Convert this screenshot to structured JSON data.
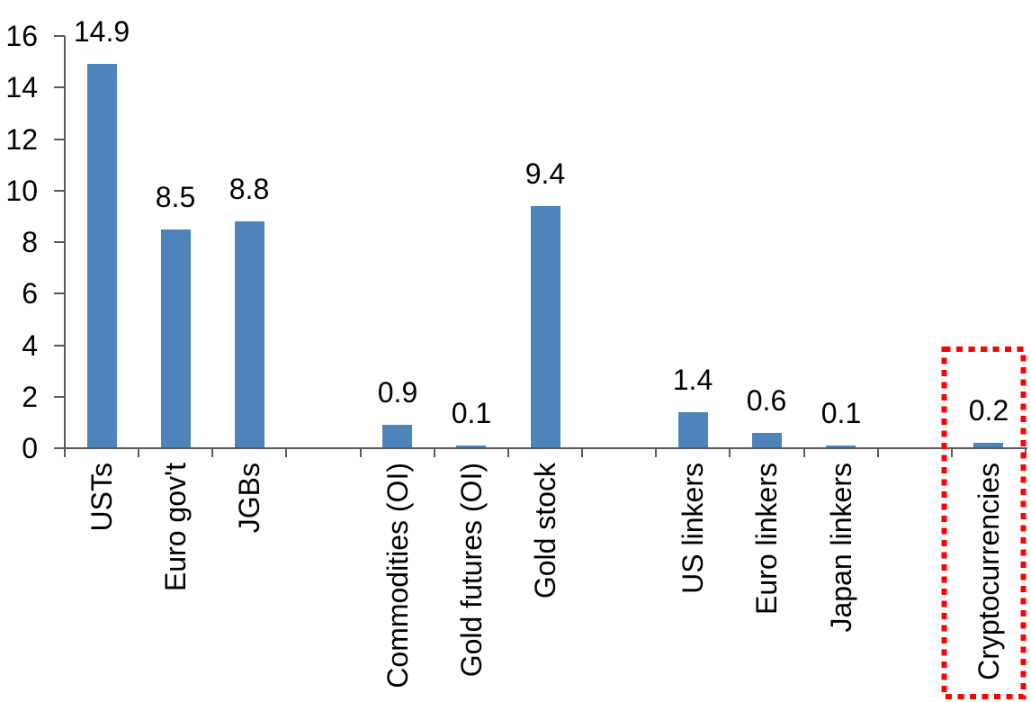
{
  "chart_data": {
    "type": "bar",
    "title": "",
    "xlabel": "",
    "ylabel": "",
    "categories": [
      "USTs",
      "Euro gov't",
      "JGBs",
      "",
      "Commodities (OI)",
      "Gold futures (OI)",
      "Gold stock",
      "",
      "US linkers",
      "Euro linkers",
      "Japan linkers",
      "",
      "Cryptocurrencies"
    ],
    "values": [
      14.9,
      8.5,
      8.8,
      null,
      0.9,
      0.1,
      9.4,
      null,
      1.4,
      0.6,
      0.1,
      null,
      0.2
    ],
    "data_labels": [
      "14.9",
      "8.5",
      "8.8",
      "",
      "0.9",
      "0.1",
      "9.4",
      "",
      "1.4",
      "0.6",
      "0.1",
      "",
      "0.2"
    ],
    "ylim": [
      0,
      16
    ],
    "ytick_step": 2,
    "ytick_labels": [
      "0",
      "2",
      "4",
      "6",
      "8",
      "10",
      "12",
      "14",
      "16"
    ],
    "grid": false,
    "legend": null,
    "bar_color": "#4d84bb",
    "axis_color": "#595959",
    "text_color": "#000000",
    "highlight": {
      "category": "Cryptocurrencies",
      "style": "dotted-box",
      "color": "#ff0000"
    }
  }
}
